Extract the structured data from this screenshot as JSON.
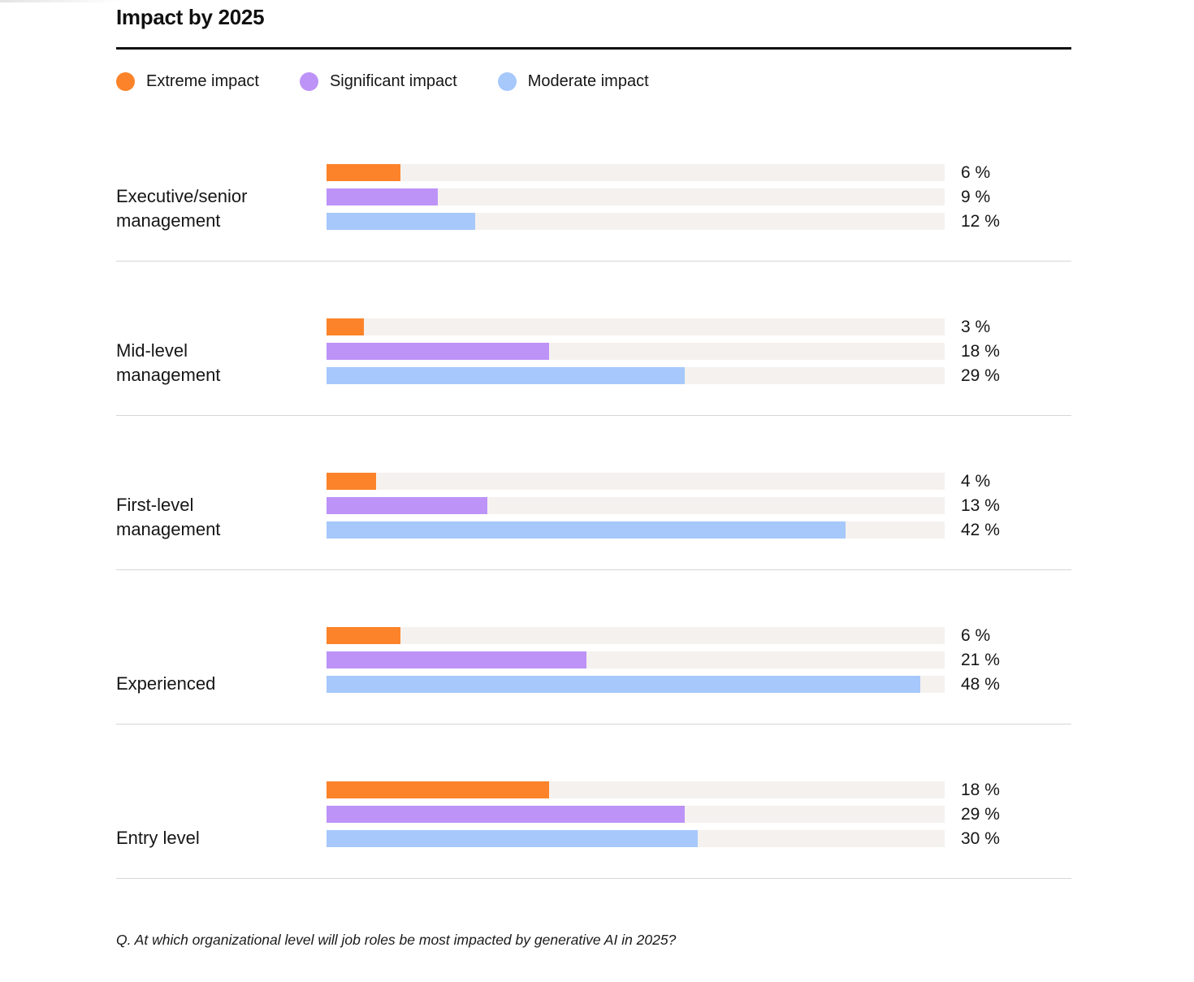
{
  "page": {
    "title": "Impact by 2025",
    "footnote": "Q. At which organizational level will job roles be most impacted by generative AI in 2025?"
  },
  "legend": [
    {
      "label": "Extreme impact",
      "color": "#fc8329"
    },
    {
      "label": "Significant impact",
      "color": "#bd93f7"
    },
    {
      "label": "Moderate impact",
      "color": "#a6c8fb"
    }
  ],
  "colors": {
    "track_background": "#f5f1ee",
    "separator": "#d9d6d4",
    "title_rule": "#111111",
    "text": "#161616"
  },
  "chart_data": {
    "type": "bar",
    "orientation": "horizontal",
    "title": "Impact by 2025",
    "xlabel": "",
    "ylabel": "",
    "axis_max_percent": 50,
    "track_color": "#f5f1ee",
    "grid": false,
    "legend_position": "top",
    "categories": [
      "Executive/senior management",
      "Mid-level management",
      "First-level management",
      "Experienced",
      "Entry level"
    ],
    "series": [
      {
        "name": "Extreme impact",
        "color": "#fc8329",
        "values": [
          6,
          3,
          4,
          6,
          18
        ]
      },
      {
        "name": "Significant impact",
        "color": "#bd93f7",
        "values": [
          9,
          18,
          13,
          21,
          29
        ]
      },
      {
        "name": "Moderate impact",
        "color": "#a6c8fb",
        "values": [
          12,
          29,
          42,
          48,
          30
        ]
      }
    ],
    "value_labels": [
      [
        "6 %",
        "9 %",
        "12 %"
      ],
      [
        "3 %",
        "18 %",
        "29 %"
      ],
      [
        "4 %",
        "13 %",
        "42 %"
      ],
      [
        "6 %",
        "21 %",
        "48 %"
      ],
      [
        "18 %",
        "29 %",
        "30 %"
      ]
    ]
  }
}
